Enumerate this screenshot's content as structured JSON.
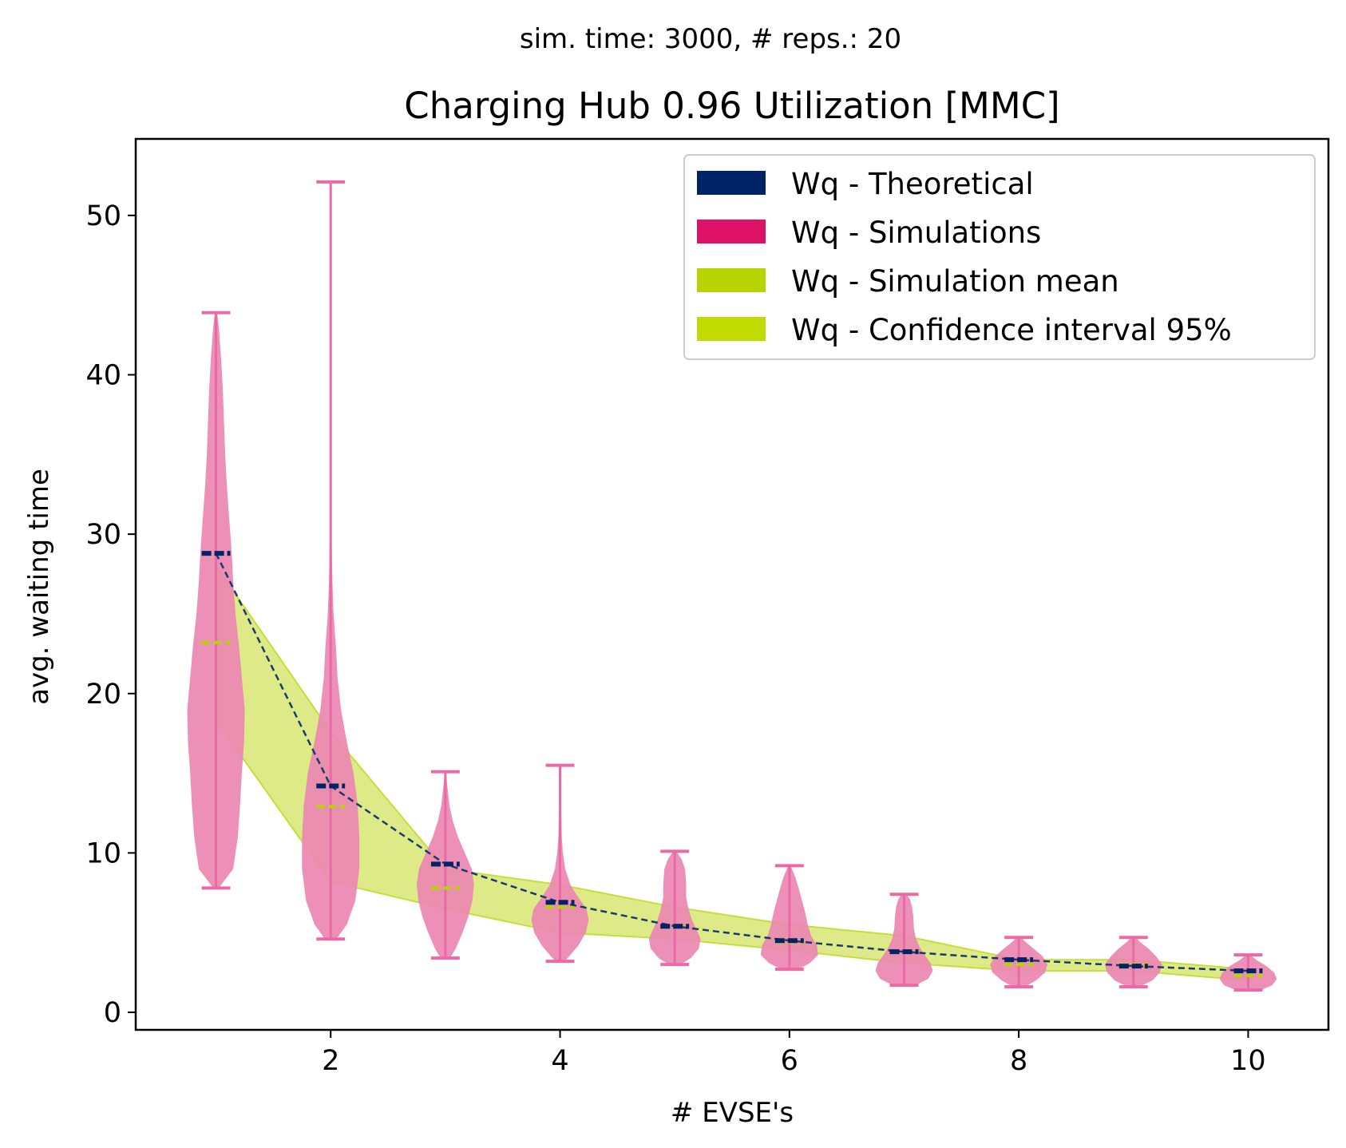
{
  "chart_data": {
    "type": "violin",
    "suptitle": "sim. time: 3000, # reps.: 20",
    "title": "Charging Hub 0.96 Utilization [MMC]",
    "xlabel": "# EVSE's",
    "ylabel": "avg. waiting time",
    "xlim": [
      0.3,
      10.7
    ],
    "ylim": [
      -1.1,
      54.8
    ],
    "xticks": [
      2,
      4,
      6,
      8,
      10
    ],
    "yticks": [
      0,
      10,
      20,
      30,
      40,
      50
    ],
    "legend": {
      "position": "top-right",
      "entries": [
        {
          "label": "Wq - Theoretical",
          "color": "#002366"
        },
        {
          "label": "Wq - Simulations",
          "color": "#dd1166"
        },
        {
          "label": "Wq - Simulation mean",
          "color": "#b8d400"
        },
        {
          "label": "Wq - Confidence interval 95%",
          "color": "#c0dc00"
        }
      ]
    },
    "colors": {
      "violin": "#ec87b2",
      "violin_line": "#ea6aa5",
      "theoretical": "#002366",
      "dashed_line": "#1a3a6a",
      "mean": "#b8d400",
      "ci_fill": "#dae87a",
      "ci_edge": "#c6de3a"
    },
    "x": [
      1,
      2,
      3,
      4,
      5,
      6,
      7,
      8,
      9,
      10
    ],
    "theoretical": [
      28.8,
      14.2,
      9.3,
      6.9,
      5.4,
      4.5,
      3.8,
      3.3,
      2.9,
      2.6
    ],
    "sim_mean": [
      23.2,
      12.9,
      7.8,
      6.6,
      5.4,
      4.4,
      3.8,
      3.0,
      3.0,
      2.3
    ],
    "ci_lower": [
      18.3,
      8.2,
      6.5,
      5.0,
      4.6,
      3.9,
      3.1,
      2.6,
      2.6,
      2.0
    ],
    "ci_upper": [
      28.0,
      17.6,
      9.0,
      8.0,
      6.6,
      5.5,
      4.8,
      3.3,
      3.3,
      2.7
    ],
    "sim_min": [
      7.8,
      4.6,
      3.4,
      3.2,
      3.0,
      2.7,
      1.7,
      1.6,
      1.6,
      1.4
    ],
    "sim_max": [
      43.9,
      52.1,
      15.1,
      15.5,
      10.1,
      9.2,
      7.4,
      4.7,
      4.7,
      3.6
    ],
    "violin_profiles": [
      [
        [
          7.8,
          0.05
        ],
        [
          9,
          0.3
        ],
        [
          11,
          0.38
        ],
        [
          13,
          0.42
        ],
        [
          15,
          0.45
        ],
        [
          17,
          0.49
        ],
        [
          19,
          0.5
        ],
        [
          21,
          0.45
        ],
        [
          23,
          0.4
        ],
        [
          25,
          0.34
        ],
        [
          27,
          0.3
        ],
        [
          29,
          0.27
        ],
        [
          31,
          0.23
        ],
        [
          33,
          0.19
        ],
        [
          35,
          0.16
        ],
        [
          37,
          0.14
        ],
        [
          39,
          0.12
        ],
        [
          41,
          0.09
        ],
        [
          43,
          0.05
        ],
        [
          43.9,
          0.02
        ]
      ],
      [
        [
          4.6,
          0.1
        ],
        [
          5.5,
          0.28
        ],
        [
          7,
          0.43
        ],
        [
          9,
          0.5
        ],
        [
          11,
          0.5
        ],
        [
          13,
          0.47
        ],
        [
          15,
          0.4
        ],
        [
          17,
          0.28
        ],
        [
          19,
          0.18
        ],
        [
          21,
          0.12
        ],
        [
          23,
          0.09
        ],
        [
          25,
          0.05
        ],
        [
          27,
          0.03
        ],
        [
          29,
          0.02
        ],
        [
          31,
          0.012
        ],
        [
          35,
          0.007
        ],
        [
          40,
          0.005
        ],
        [
          45,
          0.004
        ],
        [
          52.1,
          0.003
        ]
      ],
      [
        [
          3.4,
          0.08
        ],
        [
          4,
          0.18
        ],
        [
          5,
          0.3
        ],
        [
          6,
          0.4
        ],
        [
          7,
          0.47
        ],
        [
          8,
          0.5
        ],
        [
          9,
          0.46
        ],
        [
          10,
          0.34
        ],
        [
          11,
          0.22
        ],
        [
          12,
          0.13
        ],
        [
          13,
          0.07
        ],
        [
          14,
          0.04
        ],
        [
          15.1,
          0.01
        ]
      ],
      [
        [
          3.2,
          0.08
        ],
        [
          3.6,
          0.18
        ],
        [
          4.2,
          0.32
        ],
        [
          5,
          0.45
        ],
        [
          5.8,
          0.5
        ],
        [
          6.5,
          0.46
        ],
        [
          7.2,
          0.32
        ],
        [
          8,
          0.18
        ],
        [
          9,
          0.09
        ],
        [
          10,
          0.05
        ],
        [
          11,
          0.03
        ],
        [
          12.5,
          0.02
        ],
        [
          14,
          0.015
        ],
        [
          15.5,
          0.005
        ]
      ],
      [
        [
          3.0,
          0.1
        ],
        [
          3.4,
          0.28
        ],
        [
          4,
          0.42
        ],
        [
          4.6,
          0.45
        ],
        [
          5.2,
          0.38
        ],
        [
          5.8,
          0.3
        ],
        [
          6.5,
          0.24
        ],
        [
          7.2,
          0.2
        ],
        [
          8,
          0.2
        ],
        [
          9,
          0.18
        ],
        [
          9.6,
          0.12
        ],
        [
          10.1,
          0.03
        ]
      ],
      [
        [
          2.7,
          0.15
        ],
        [
          3.1,
          0.36
        ],
        [
          3.6,
          0.5
        ],
        [
          4.2,
          0.48
        ],
        [
          4.8,
          0.38
        ],
        [
          5.5,
          0.32
        ],
        [
          6.2,
          0.28
        ],
        [
          7,
          0.22
        ],
        [
          7.8,
          0.16
        ],
        [
          8.5,
          0.1
        ],
        [
          9.2,
          0.02
        ]
      ],
      [
        [
          1.7,
          0.2
        ],
        [
          2.1,
          0.42
        ],
        [
          2.6,
          0.5
        ],
        [
          3.1,
          0.46
        ],
        [
          3.6,
          0.36
        ],
        [
          4.1,
          0.27
        ],
        [
          4.7,
          0.2
        ],
        [
          5.3,
          0.17
        ],
        [
          6,
          0.16
        ],
        [
          6.6,
          0.14
        ],
        [
          7.1,
          0.1
        ],
        [
          7.4,
          0.04
        ]
      ],
      [
        [
          1.6,
          0.1
        ],
        [
          2,
          0.3
        ],
        [
          2.5,
          0.46
        ],
        [
          3,
          0.5
        ],
        [
          3.5,
          0.42
        ],
        [
          4,
          0.26
        ],
        [
          4.4,
          0.12
        ],
        [
          4.7,
          0.04
        ]
      ],
      [
        [
          1.6,
          0.1
        ],
        [
          2,
          0.33
        ],
        [
          2.5,
          0.46
        ],
        [
          3,
          0.5
        ],
        [
          3.5,
          0.4
        ],
        [
          4,
          0.26
        ],
        [
          4.4,
          0.12
        ],
        [
          4.7,
          0.04
        ]
      ],
      [
        [
          1.4,
          0.22
        ],
        [
          1.7,
          0.42
        ],
        [
          2.1,
          0.5
        ],
        [
          2.5,
          0.45
        ],
        [
          2.9,
          0.32
        ],
        [
          3.3,
          0.14
        ],
        [
          3.6,
          0.04
        ]
      ]
    ]
  }
}
